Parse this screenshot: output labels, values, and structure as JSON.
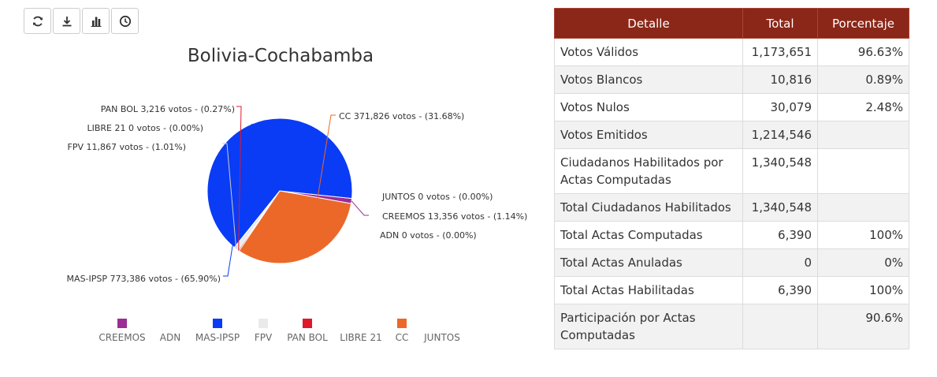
{
  "toolbar": {
    "buttons": [
      {
        "name": "refresh-button",
        "icon": "refresh-icon"
      },
      {
        "name": "download-button",
        "icon": "download-icon"
      },
      {
        "name": "bar-chart-button",
        "icon": "bar-chart-icon"
      },
      {
        "name": "history-button",
        "icon": "clock-icon"
      }
    ]
  },
  "chart_data": {
    "type": "pie",
    "title": "Bolivia-Cochabamba",
    "legend_position": "bottom",
    "slices": [
      {
        "name": "CREEMOS",
        "votes": 13356,
        "percent": 1.14,
        "color": "#9c2c96",
        "label": "CREEMOS 13,356 votos - (1.14%)"
      },
      {
        "name": "ADN",
        "votes": 0,
        "percent": 0.0,
        "color": "#8a8a8a",
        "label": "ADN 0 votos - (0.00%)"
      },
      {
        "name": "MAS-IPSP",
        "votes": 773386,
        "percent": 65.9,
        "color": "#0a3cf5",
        "label": "MAS-IPSP 773,386 votos - (65.90%)"
      },
      {
        "name": "FPV",
        "votes": 11867,
        "percent": 1.01,
        "color": "#eaeaea",
        "label": "FPV 11,867 votos - (1.01%)"
      },
      {
        "name": "PAN BOL",
        "votes": 3216,
        "percent": 0.27,
        "color": "#e0182b",
        "label": "PAN BOL 3,216 votos - (0.27%)"
      },
      {
        "name": "LIBRE 21",
        "votes": 0,
        "percent": 0.0,
        "color": "#b5b5b5",
        "label": "LIBRE 21 0 votos - (0.00%)"
      },
      {
        "name": "CC",
        "votes": 371826,
        "percent": 31.68,
        "color": "#ec6828",
        "label": "CC 371,826 votos - (31.68%)"
      },
      {
        "name": "JUNTOS",
        "votes": 0,
        "percent": 0.0,
        "color": "#8a8a8a",
        "label": "JUNTOS 0 votos - (0.00%)"
      }
    ],
    "legend": [
      "CREEMOS",
      "ADN",
      "MAS-IPSP",
      "FPV",
      "PAN BOL",
      "LIBRE 21",
      "CC",
      "JUNTOS"
    ]
  },
  "table": {
    "headers": [
      "Detalle",
      "Total",
      "Porcentaje"
    ],
    "rows": [
      {
        "detalle": "Votos Válidos",
        "total": "1,173,651",
        "porcentaje": "96.63%"
      },
      {
        "detalle": "Votos Blancos",
        "total": "10,816",
        "porcentaje": "0.89%"
      },
      {
        "detalle": "Votos Nulos",
        "total": "30,079",
        "porcentaje": "2.48%"
      },
      {
        "detalle": "Votos Emitidos",
        "total": "1,214,546",
        "porcentaje": ""
      },
      {
        "detalle": "Ciudadanos Habilitados por Actas Computadas",
        "total": "1,340,548",
        "porcentaje": ""
      },
      {
        "detalle": "Total Ciudadanos Habilitados",
        "total": "1,340,548",
        "porcentaje": ""
      },
      {
        "detalle": "Total Actas Computadas",
        "total": "6,390",
        "porcentaje": "100%"
      },
      {
        "detalle": "Total Actas Anuladas",
        "total": "0",
        "porcentaje": "0%"
      },
      {
        "detalle": "Total Actas Habilitadas",
        "total": "6,390",
        "porcentaje": "100%"
      },
      {
        "detalle": "Participación por Actas Computadas",
        "total": "",
        "porcentaje": "90.6%"
      }
    ]
  }
}
